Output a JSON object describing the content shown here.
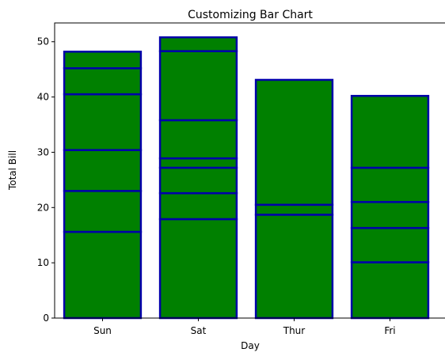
{
  "chart_data": {
    "type": "bar",
    "title": "Customizing Bar Chart",
    "xlabel": "Day",
    "ylabel": "Total Bill",
    "categories": [
      "Sun",
      "Sat",
      "Thur",
      "Fri"
    ],
    "bar_segment_boundaries": {
      "Sun": [
        0,
        15.6,
        23.0,
        30.4,
        40.5,
        45.2,
        48.2
      ],
      "Sat": [
        0,
        17.9,
        22.6,
        27.2,
        28.9,
        35.8,
        48.3,
        50.8
      ],
      "Thur": [
        0,
        18.7,
        20.5,
        43.1
      ],
      "Fri": [
        0,
        10.1,
        16.3,
        21.0,
        27.2,
        40.2
      ]
    },
    "yticks": [
      0,
      10,
      20,
      30,
      40,
      50
    ],
    "ylim": [
      0,
      53.4
    ],
    "grid": false,
    "colors": {
      "bar_fill": "#008000",
      "bar_edge": "#0000aa"
    }
  }
}
